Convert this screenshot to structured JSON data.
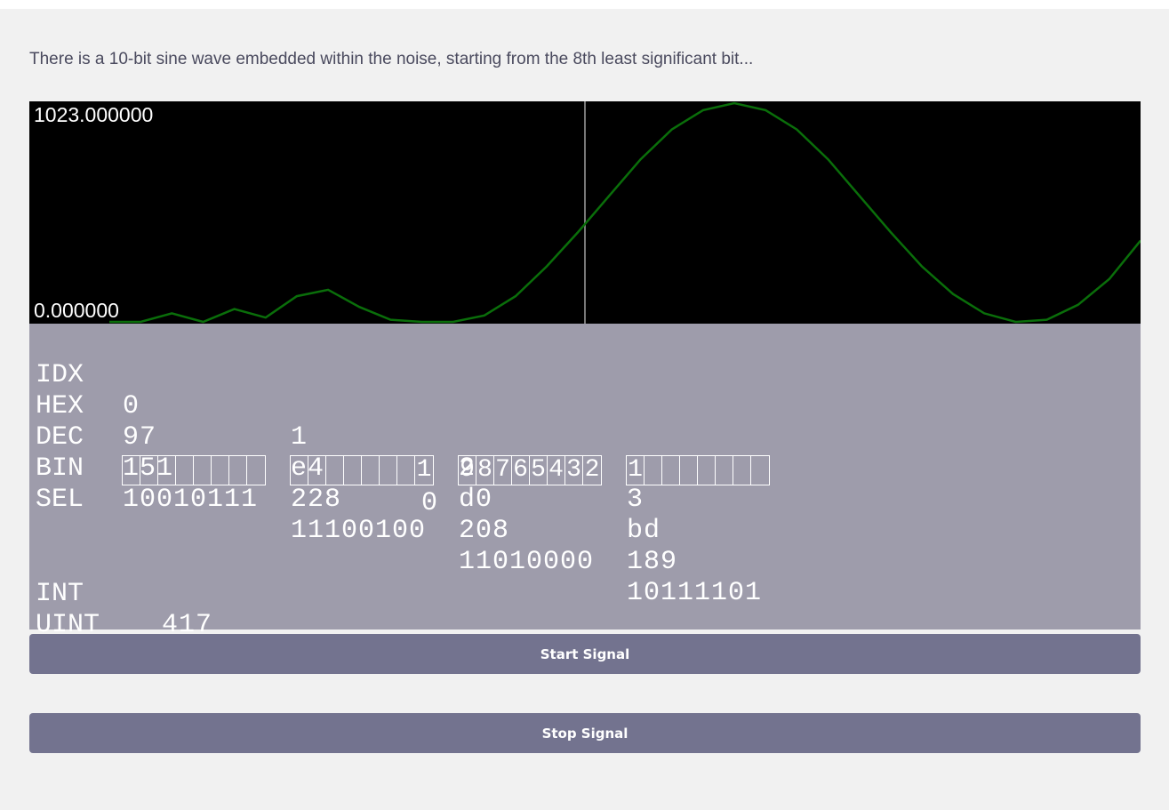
{
  "intro_text": "There is a 10-bit sine wave embedded within the noise, starting from the 8th least significant bit...",
  "scope": {
    "max_label": "1023.000000",
    "min_label": "0.000000",
    "trace_color": "#0a6e0a"
  },
  "chart_data": {
    "type": "line",
    "ylim": [
      0,
      1023
    ],
    "series": [
      {
        "values": [
          0,
          0,
          40,
          0,
          60,
          20,
          120,
          150,
          70,
          10,
          0,
          0,
          30,
          120,
          260,
          420,
          590,
          760,
          900,
          990,
          1023,
          990,
          900,
          760,
          590,
          420,
          260,
          130,
          40,
          0,
          10,
          80,
          200,
          380
        ]
      }
    ]
  },
  "decoder": {
    "labels": {
      "idx": "IDX",
      "hex": "HEX",
      "dec": "DEC",
      "bin": "BIN",
      "sel": "SEL",
      "int": "INT",
      "uint": "UINT"
    },
    "bytes": [
      {
        "idx": "0",
        "hex": "97",
        "dec": "151",
        "bin": "10010111",
        "sel": [
          "",
          "",
          "",
          "",
          "",
          "",
          "",
          ""
        ]
      },
      {
        "idx": "1",
        "hex": "e4",
        "dec": "228",
        "bin": "11100100",
        "sel": [
          "",
          "",
          "",
          "",
          "",
          "",
          "",
          "1"
        ]
      },
      {
        "idx": "2",
        "hex": "d0",
        "dec": "208",
        "bin": "11010000",
        "sel": [
          "9",
          "8",
          "7",
          "6",
          "5",
          "4",
          "3",
          "2"
        ]
      },
      {
        "idx": "3",
        "hex": "bd",
        "dec": "189",
        "bin": "10111101",
        "sel": [
          "1",
          "",
          "",
          "",
          "",
          "",
          "",
          ""
        ]
      }
    ],
    "sel_overflow": "0",
    "int_value": "417",
    "uint_value": "417"
  },
  "buttons": {
    "start": "Start Signal",
    "stop": "Stop Signal"
  }
}
